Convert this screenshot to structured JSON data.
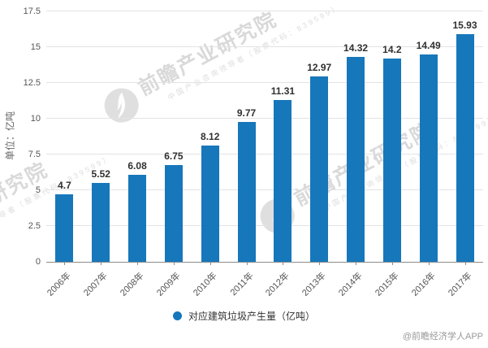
{
  "chart_data": {
    "type": "bar",
    "categories": [
      "2006年",
      "2007年",
      "2008年",
      "2009年",
      "2010年",
      "2011年",
      "2012年",
      "2013年",
      "2014年",
      "2015年",
      "2016年",
      "2017年"
    ],
    "values": [
      4.7,
      5.52,
      6.08,
      6.75,
      8.12,
      9.77,
      11.31,
      12.97,
      14.32,
      14.2,
      14.49,
      15.93
    ],
    "series_name": "对应建筑垃圾产生量（亿吨）",
    "title": "",
    "xlabel": "",
    "ylabel": "单位：亿吨",
    "ylim": [
      0,
      17.5
    ],
    "ytick_step": 2.5,
    "bar_color": "#1777bb",
    "grid": true,
    "legend_position": "bottom"
  },
  "legend": {
    "marker_color": "#1777bb",
    "label": "对应建筑垃圾产生量（亿吨）"
  },
  "watermark": {
    "brand": "前瞻产业研究院",
    "tagline": "中国产业咨询领导者（股票代码：839599）"
  },
  "credit": "@前瞻经济学人APP"
}
